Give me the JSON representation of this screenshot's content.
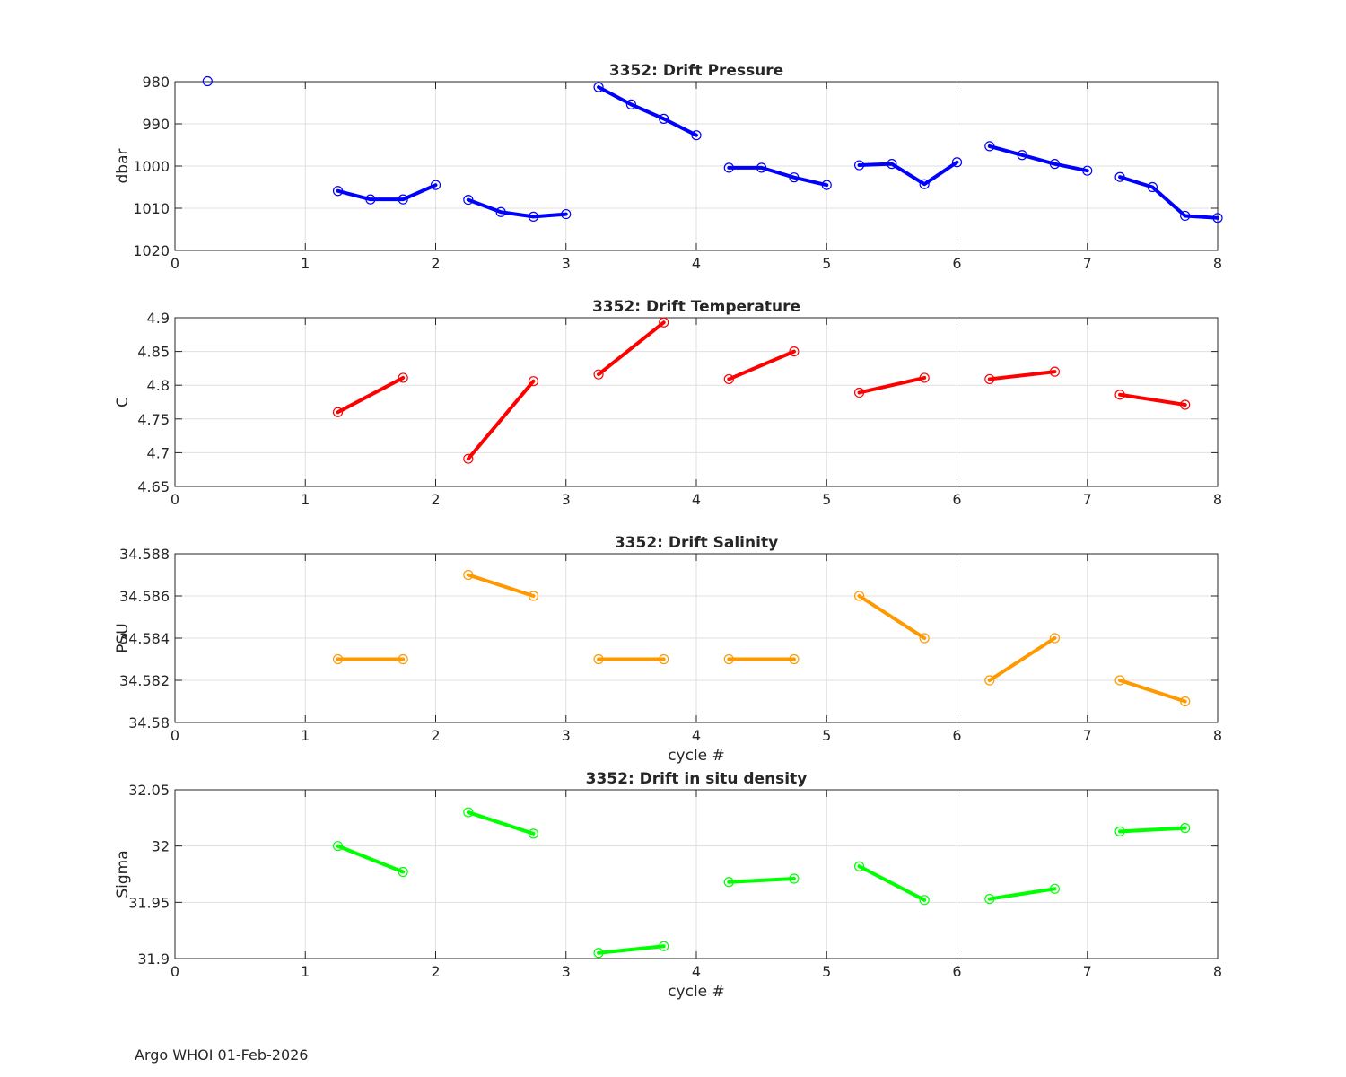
{
  "footer": "Argo WHOI 01-Feb-2026",
  "chart_data": [
    {
      "type": "line",
      "title": "3352: Drift Pressure",
      "xlabel": "",
      "ylabel": "dbar",
      "xlim": [
        0,
        8
      ],
      "ylim": [
        980,
        1020
      ],
      "y_reversed": true,
      "xticks": [
        "0",
        "1",
        "2",
        "3",
        "4",
        "5",
        "6",
        "7",
        "8"
      ],
      "yticks": [
        {
          "v": 980,
          "label": "980"
        },
        {
          "v": 990,
          "label": "990"
        },
        {
          "v": 1000,
          "label": "1000"
        },
        {
          "v": 1010,
          "label": "1010"
        },
        {
          "v": 1020,
          "label": "1020"
        }
      ],
      "color": "#0000ff",
      "grid": true,
      "segments": [
        {
          "x": [
            0.25
          ],
          "y": [
            979.9
          ]
        },
        {
          "x": [
            1.25,
            1.5,
            1.75,
            2.0
          ],
          "y": [
            1005.9,
            1007.9,
            1007.9,
            1004.5
          ]
        },
        {
          "x": [
            2.25,
            2.5,
            2.75,
            3.0
          ],
          "y": [
            1008.0,
            1010.9,
            1012.0,
            1011.4
          ]
        },
        {
          "x": [
            3.25,
            3.5,
            3.75,
            4.0
          ],
          "y": [
            981.3,
            985.4,
            988.8,
            992.7
          ]
        },
        {
          "x": [
            4.25,
            4.5,
            4.75,
            5.0
          ],
          "y": [
            1000.4,
            1000.4,
            1002.7,
            1004.5
          ]
        },
        {
          "x": [
            5.25,
            5.5,
            5.75,
            6.0
          ],
          "y": [
            999.8,
            999.5,
            1004.3,
            999.1
          ]
        },
        {
          "x": [
            6.25,
            6.5,
            6.75,
            7.0
          ],
          "y": [
            995.3,
            997.4,
            999.5,
            1001.1
          ]
        },
        {
          "x": [
            7.25,
            7.5,
            7.75,
            8.0
          ],
          "y": [
            1002.6,
            1005.0,
            1011.8,
            1012.3
          ]
        }
      ]
    },
    {
      "type": "line",
      "title": "3352: Drift Temperature",
      "xlabel": "",
      "ylabel": "C",
      "xlim": [
        0,
        8
      ],
      "ylim": [
        4.65,
        4.9
      ],
      "y_reversed": false,
      "xticks": [
        "0",
        "1",
        "2",
        "3",
        "4",
        "5",
        "6",
        "7",
        "8"
      ],
      "yticks": [
        {
          "v": 4.65,
          "label": "4.65"
        },
        {
          "v": 4.7,
          "label": "4.7"
        },
        {
          "v": 4.75,
          "label": "4.75"
        },
        {
          "v": 4.8,
          "label": "4.8"
        },
        {
          "v": 4.85,
          "label": "4.85"
        },
        {
          "v": 4.9,
          "label": "4.9"
        }
      ],
      "color": "#ff0000",
      "grid": true,
      "segments": [
        {
          "x": [
            1.25,
            1.75
          ],
          "y": [
            4.76,
            4.811
          ]
        },
        {
          "x": [
            2.25,
            2.75
          ],
          "y": [
            4.691,
            4.806
          ]
        },
        {
          "x": [
            3.25,
            3.75
          ],
          "y": [
            4.816,
            4.893
          ]
        },
        {
          "x": [
            4.25,
            4.75
          ],
          "y": [
            4.809,
            4.85
          ]
        },
        {
          "x": [
            5.25,
            5.75
          ],
          "y": [
            4.789,
            4.811
          ]
        },
        {
          "x": [
            6.25,
            6.75
          ],
          "y": [
            4.809,
            4.82
          ]
        },
        {
          "x": [
            7.25,
            7.75
          ],
          "y": [
            4.786,
            4.771
          ]
        }
      ]
    },
    {
      "type": "line",
      "title": "3352: Drift Salinity",
      "xlabel": "cycle #",
      "ylabel": "PSU",
      "xlim": [
        0,
        8
      ],
      "ylim": [
        34.58,
        34.588
      ],
      "y_reversed": false,
      "xticks": [
        "0",
        "1",
        "2",
        "3",
        "4",
        "5",
        "6",
        "7",
        "8"
      ],
      "yticks": [
        {
          "v": 34.58,
          "label": "34.58"
        },
        {
          "v": 34.582,
          "label": "34.582"
        },
        {
          "v": 34.584,
          "label": "34.584"
        },
        {
          "v": 34.586,
          "label": "34.586"
        },
        {
          "v": 34.588,
          "label": "34.588"
        }
      ],
      "color": "#ff9900",
      "grid": true,
      "segments": [
        {
          "x": [
            1.25,
            1.75
          ],
          "y": [
            34.583,
            34.583
          ]
        },
        {
          "x": [
            2.25,
            2.75
          ],
          "y": [
            34.587,
            34.586
          ]
        },
        {
          "x": [
            3.25,
            3.75
          ],
          "y": [
            34.583,
            34.583
          ]
        },
        {
          "x": [
            4.25,
            4.75
          ],
          "y": [
            34.583,
            34.583
          ]
        },
        {
          "x": [
            5.25,
            5.75
          ],
          "y": [
            34.586,
            34.584
          ]
        },
        {
          "x": [
            6.25,
            6.75
          ],
          "y": [
            34.582,
            34.584
          ]
        },
        {
          "x": [
            7.25,
            7.75
          ],
          "y": [
            34.582,
            34.581
          ]
        }
      ]
    },
    {
      "type": "line",
      "title": "3352: Drift in situ density",
      "xlabel": "cycle #",
      "ylabel": "Sigma",
      "xlim": [
        0,
        8
      ],
      "ylim": [
        31.9,
        32.05
      ],
      "y_reversed": false,
      "xticks": [
        "0",
        "1",
        "2",
        "3",
        "4",
        "5",
        "6",
        "7",
        "8"
      ],
      "yticks": [
        {
          "v": 31.9,
          "label": "31.9"
        },
        {
          "v": 31.95,
          "label": "31.95"
        },
        {
          "v": 32.0,
          "label": "32"
        },
        {
          "v": 32.05,
          "label": "32.05"
        }
      ],
      "color": "#00ff00",
      "grid": true,
      "segments": [
        {
          "x": [
            1.25,
            1.75
          ],
          "y": [
            32.0,
            31.977
          ]
        },
        {
          "x": [
            2.25,
            2.75
          ],
          "y": [
            32.03,
            32.011
          ]
        },
        {
          "x": [
            3.25,
            3.75
          ],
          "y": [
            31.905,
            31.911
          ]
        },
        {
          "x": [
            4.25,
            4.75
          ],
          "y": [
            31.968,
            31.971
          ]
        },
        {
          "x": [
            5.25,
            5.75
          ],
          "y": [
            31.982,
            31.952
          ]
        },
        {
          "x": [
            6.25,
            6.75
          ],
          "y": [
            31.953,
            31.962
          ]
        },
        {
          "x": [
            7.25,
            7.75
          ],
          "y": [
            32.013,
            32.016
          ]
        }
      ]
    }
  ]
}
